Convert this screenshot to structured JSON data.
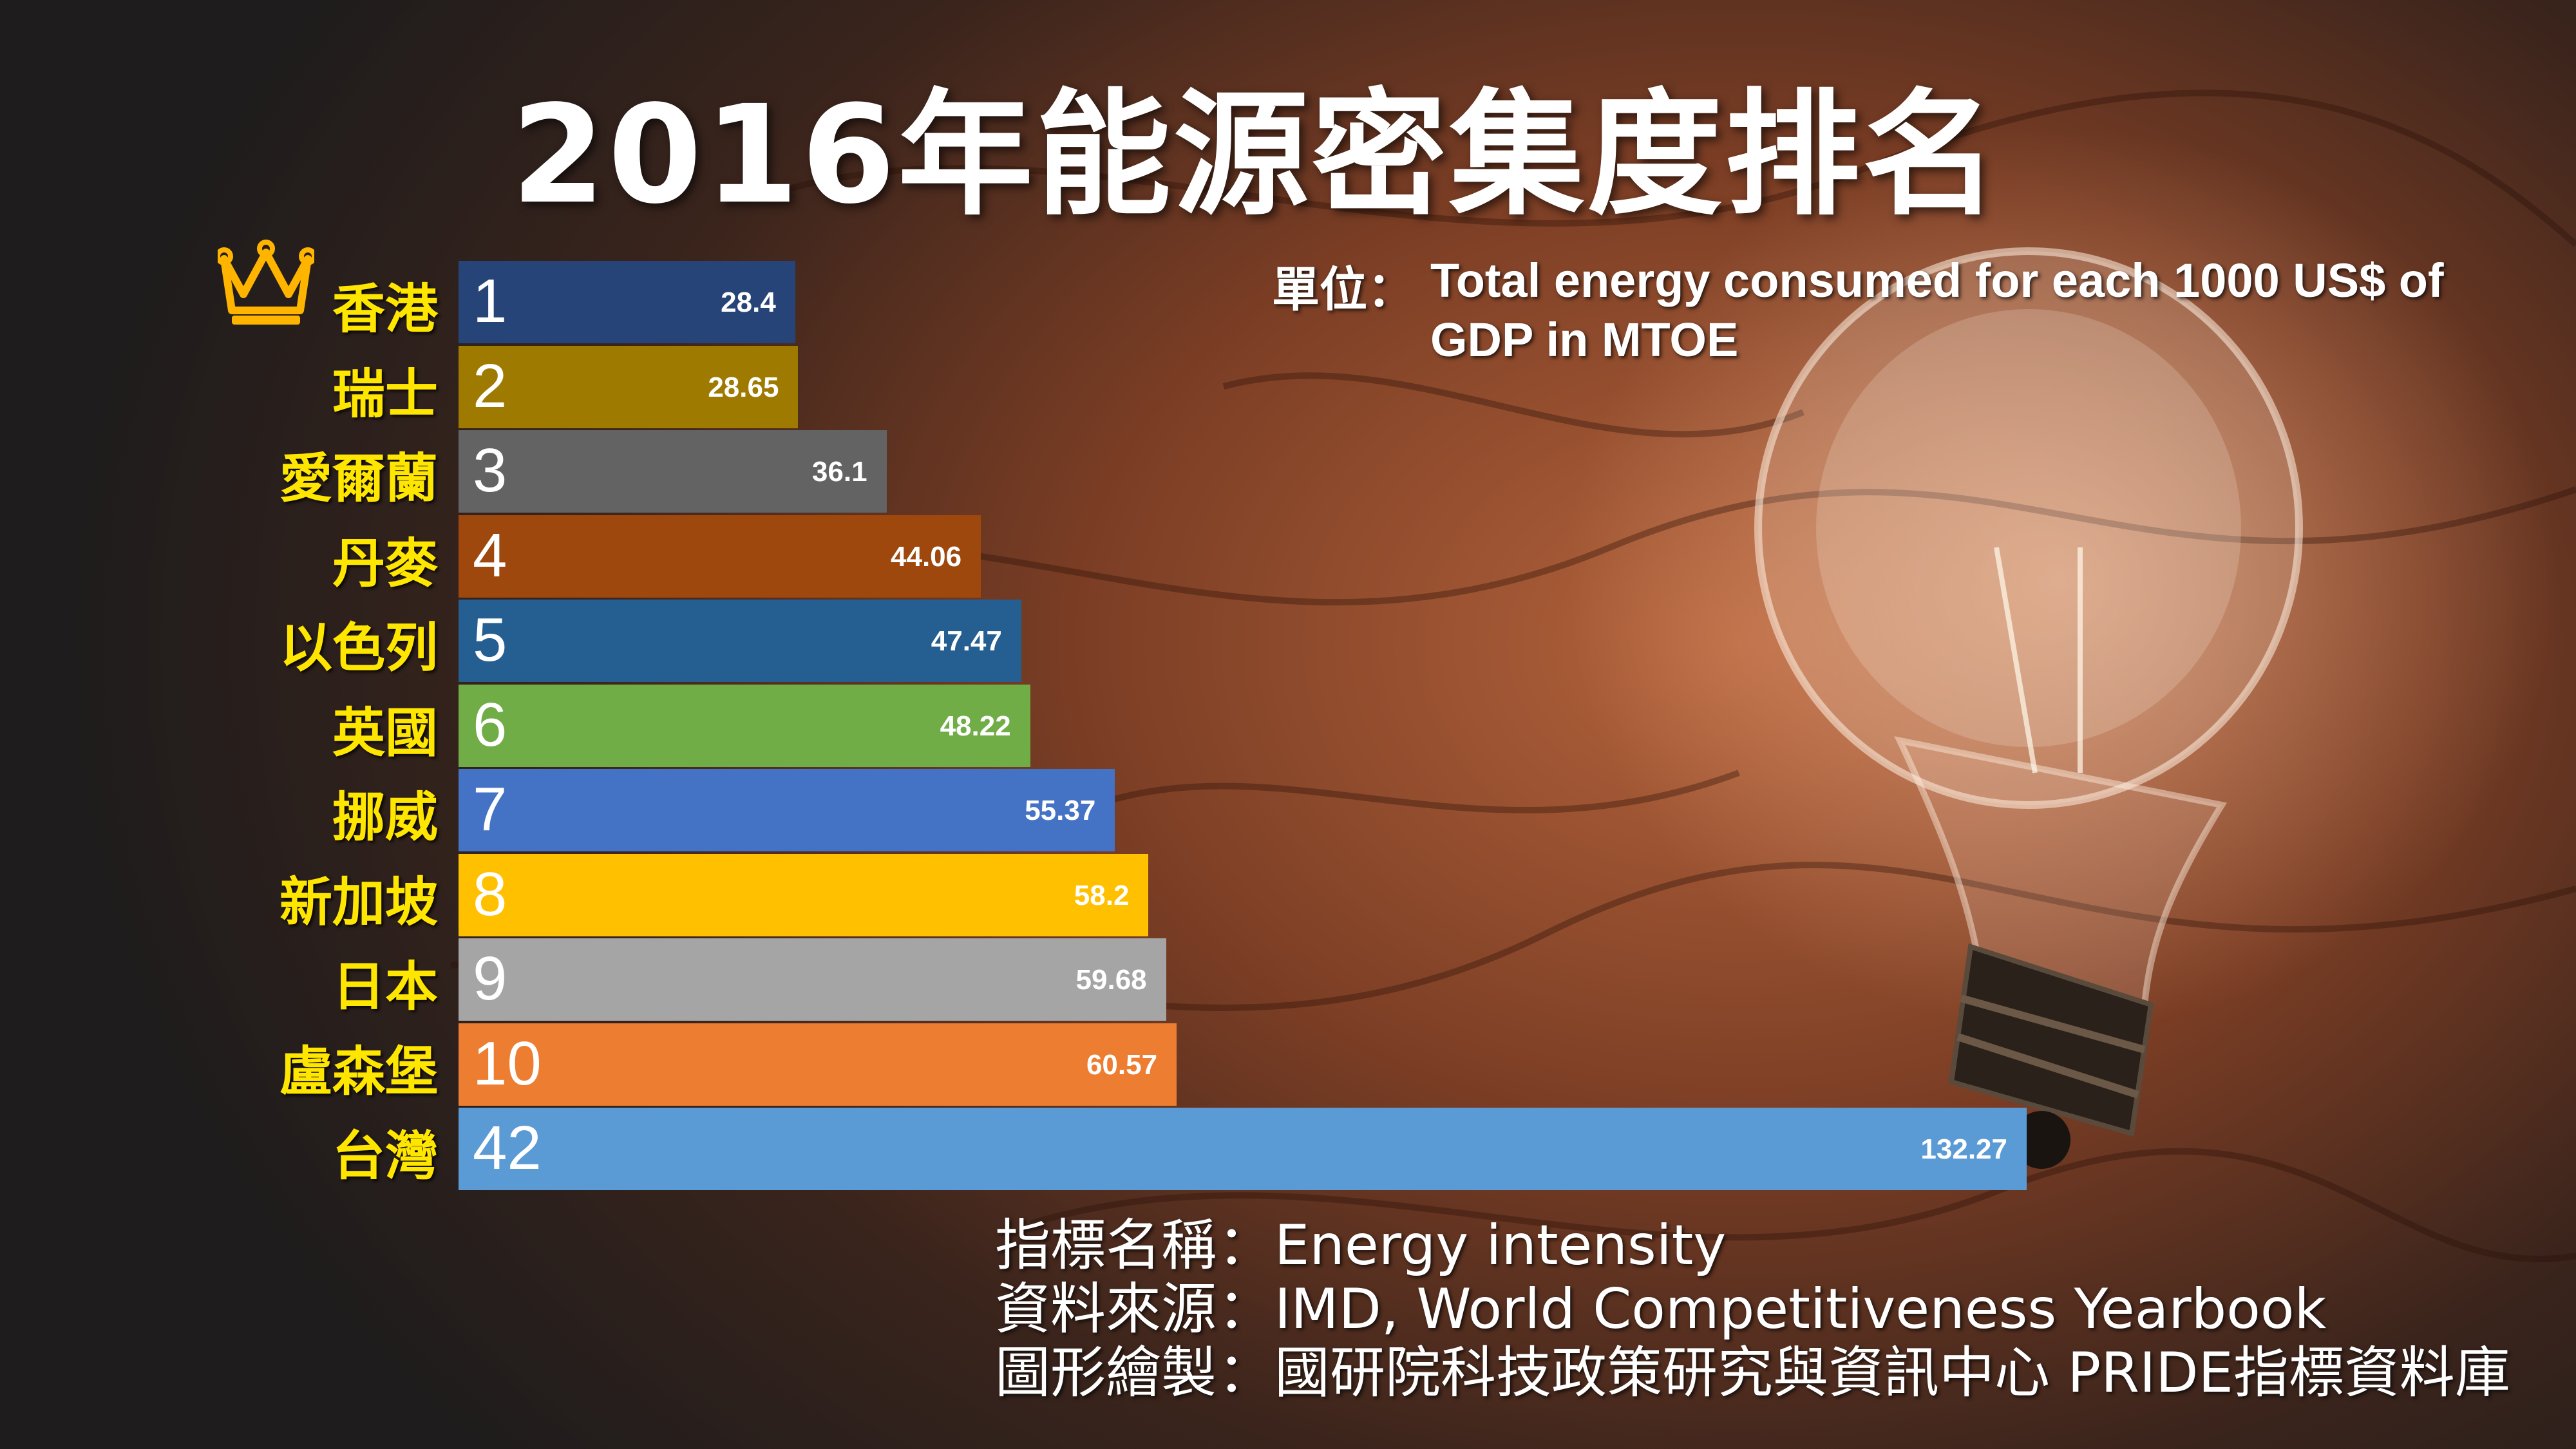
{
  "title": "2016年能源密集度排名",
  "unit": {
    "label": "單位：",
    "text": "Total energy consumed for each 1000 US$ of GDP in MTOE"
  },
  "footer": {
    "separator": "：",
    "rows": [
      {
        "key": "指標名稱",
        "value": "Energy intensity"
      },
      {
        "key": "資料來源",
        "value": "IMD, World Competitiveness Yearbook"
      },
      {
        "key": "圖形繪製",
        "value": "國研院科技政策研究與資訊中心 PRIDE指標資料庫"
      }
    ]
  },
  "icons": {
    "crown": "crown-icon"
  },
  "chart_data": {
    "type": "bar",
    "orientation": "horizontal",
    "categories": [
      "香港",
      "瑞士",
      "愛爾蘭",
      "丹麥",
      "以色列",
      "英國",
      "挪威",
      "新加坡",
      "日本",
      "盧森堡",
      "台灣"
    ],
    "ranks": [
      "1",
      "2",
      "3",
      "4",
      "5",
      "6",
      "7",
      "8",
      "9",
      "10",
      "42"
    ],
    "values": [
      28.4,
      28.65,
      36.1,
      44.06,
      47.47,
      48.22,
      55.37,
      58.2,
      59.68,
      60.57,
      132.27
    ],
    "value_labels": [
      "28.4",
      "28.65",
      "36.1",
      "44.06",
      "47.47",
      "48.22",
      "55.37",
      "58.2",
      "59.68",
      "60.57",
      "132.27"
    ],
    "colors": [
      "#264478",
      "#9e7a00",
      "#636363",
      "#9e480e",
      "#255e91",
      "#70ad47",
      "#4472c4",
      "#ffc000",
      "#a5a5a5",
      "#ed7d31",
      "#5b9bd5"
    ],
    "xlim": [
      0,
      132.27
    ],
    "grid": false,
    "legend": "none"
  }
}
